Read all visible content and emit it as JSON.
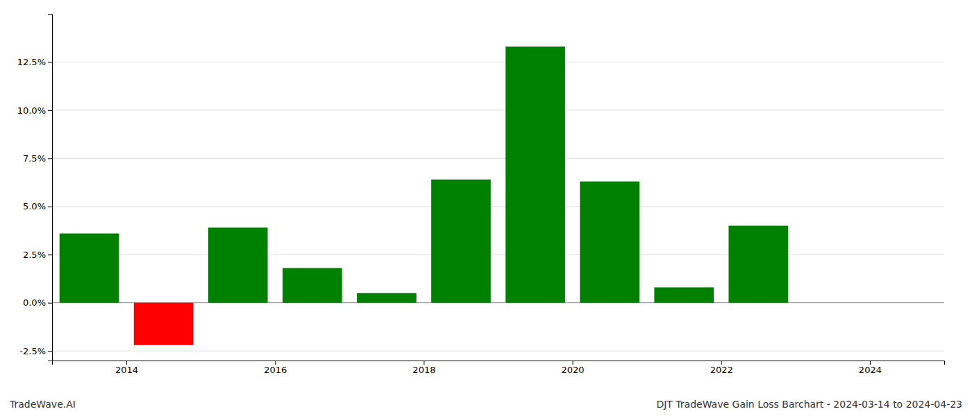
{
  "chart_data": {
    "type": "bar",
    "x": [
      2013.5,
      2014.5,
      2015.5,
      2016.5,
      2017.5,
      2018.5,
      2019.5,
      2020.5,
      2021.5,
      2022.5
    ],
    "values": [
      0.036,
      -0.022,
      0.039,
      0.018,
      0.005,
      0.064,
      0.133,
      0.063,
      0.008,
      0.04
    ],
    "colors": [
      "#008000",
      "#ff0000",
      "#008000",
      "#008000",
      "#008000",
      "#008000",
      "#008000",
      "#008000",
      "#008000",
      "#008000"
    ],
    "xlim": [
      2013,
      2025
    ],
    "xticks": [
      2014,
      2016,
      2018,
      2020,
      2022,
      2024
    ],
    "ylim": [
      -0.03,
      0.15
    ],
    "yticks": [
      {
        "value": -0.025,
        "label": "-2.5%"
      },
      {
        "value": 0.0,
        "label": "0.0%"
      },
      {
        "value": 0.025,
        "label": "2.5%"
      },
      {
        "value": 0.05,
        "label": "5.0%"
      },
      {
        "value": 0.075,
        "label": "7.5%"
      },
      {
        "value": 0.1,
        "label": "10.0%"
      },
      {
        "value": 0.125,
        "label": "12.5%"
      }
    ],
    "grid": true,
    "annotations": [
      "TradeWave.AI",
      "DJT TradeWave Gain Loss Barchart - 2024-03-14 to 2024-04-23"
    ]
  }
}
